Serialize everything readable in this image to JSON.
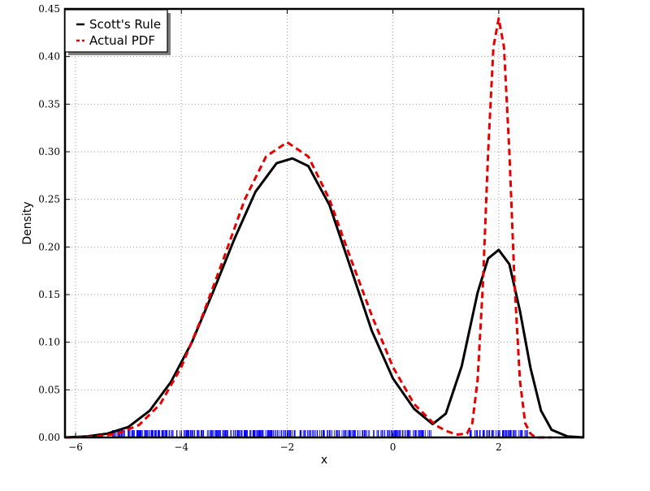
{
  "chart_data": {
    "type": "line",
    "title": "",
    "xlabel": "x",
    "ylabel": "Density",
    "xlim": [
      -6.2,
      3.6
    ],
    "ylim": [
      0,
      0.45
    ],
    "x_ticks": [
      -6,
      -4,
      -2,
      0,
      2
    ],
    "x_tick_labels": [
      "−6",
      "−4",
      "−2",
      "0",
      "2"
    ],
    "y_ticks": [
      0.0,
      0.05,
      0.1,
      0.15,
      0.2,
      0.25,
      0.3,
      0.35,
      0.4,
      0.45
    ],
    "y_tick_labels": [
      "0.00",
      "0.05",
      "0.10",
      "0.15",
      "0.20",
      "0.25",
      "0.30",
      "0.35",
      "0.40",
      "0.45"
    ],
    "grid": true,
    "legend_position": "top-left",
    "series": [
      {
        "name": "Scott's Rule",
        "color": "#000000",
        "style": "solid",
        "x": [
          -6.2,
          -5.8,
          -5.4,
          -5.0,
          -4.6,
          -4.2,
          -3.8,
          -3.4,
          -3.0,
          -2.6,
          -2.2,
          -1.9,
          -1.6,
          -1.2,
          -0.8,
          -0.4,
          0.0,
          0.4,
          0.75,
          1.0,
          1.3,
          1.6,
          1.8,
          2.0,
          2.2,
          2.4,
          2.6,
          2.8,
          3.0,
          3.3,
          3.6
        ],
        "y": [
          0.0,
          0.001,
          0.004,
          0.011,
          0.028,
          0.058,
          0.1,
          0.153,
          0.208,
          0.258,
          0.288,
          0.293,
          0.285,
          0.244,
          0.178,
          0.112,
          0.062,
          0.03,
          0.014,
          0.025,
          0.075,
          0.152,
          0.188,
          0.197,
          0.182,
          0.133,
          0.073,
          0.028,
          0.008,
          0.001,
          0.0
        ]
      },
      {
        "name": "Actual PDF",
        "color": "#e60000",
        "style": "dashed",
        "x": [
          -6.2,
          -5.6,
          -5.2,
          -4.8,
          -4.4,
          -4.0,
          -3.6,
          -3.2,
          -2.8,
          -2.4,
          -2.0,
          -1.6,
          -1.2,
          -0.8,
          -0.4,
          0.0,
          0.4,
          0.8,
          1.0,
          1.2,
          1.4,
          1.5,
          1.6,
          1.7,
          1.8,
          1.9,
          2.0,
          2.1,
          2.2,
          2.3,
          2.4,
          2.5,
          2.6,
          2.7,
          2.8,
          3.0
        ],
        "y": [
          0.0,
          0.001,
          0.004,
          0.013,
          0.035,
          0.074,
          0.128,
          0.188,
          0.25,
          0.295,
          0.31,
          0.295,
          0.25,
          0.188,
          0.128,
          0.074,
          0.035,
          0.013,
          0.007,
          0.003,
          0.004,
          0.015,
          0.06,
          0.16,
          0.3,
          0.41,
          0.44,
          0.41,
          0.3,
          0.16,
          0.06,
          0.015,
          0.004,
          0.0,
          0.0,
          0.0
        ]
      }
    ],
    "rug": {
      "color": "#0000ff",
      "x_ranges": [
        [
          -5.3,
          0.75
        ],
        [
          1.45,
          2.55
        ]
      ]
    }
  }
}
